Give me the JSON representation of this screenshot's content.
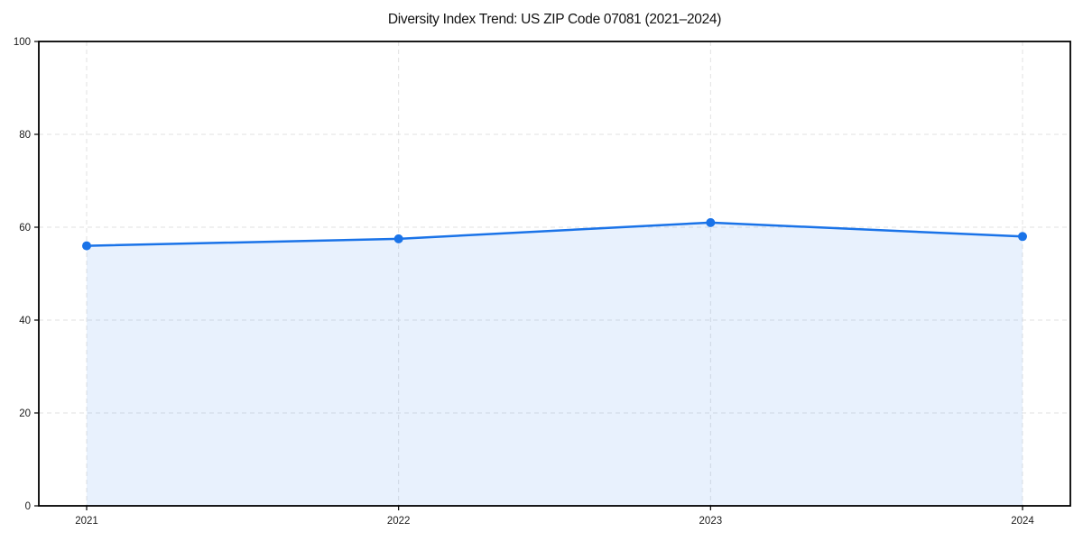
{
  "chart_data": {
    "type": "line",
    "title": "Diversity Index Trend: US ZIP Code 07081 (2021–2024)",
    "x_categories": [
      "2021",
      "2022",
      "2023",
      "2024"
    ],
    "series": [
      {
        "name": "Diversity Index",
        "values": [
          56,
          57.5,
          61,
          58
        ]
      }
    ],
    "xlabel": "",
    "ylabel": "",
    "ylim": [
      0,
      100
    ],
    "yticks": [
      0,
      20,
      40,
      60,
      80,
      100
    ],
    "grid": "dashed, horizontal and vertical",
    "legend": "none",
    "area_fill": true,
    "markers": true,
    "style": {
      "line_color": "#1a73e8",
      "marker_color": "#1a73e8",
      "fill_color": "#1a73e8",
      "fill_opacity": 0.1,
      "grid_color": "#e2e2e2",
      "axis_color": "#000000",
      "label_color": "#1a1a1a",
      "background": "#ffffff"
    }
  }
}
